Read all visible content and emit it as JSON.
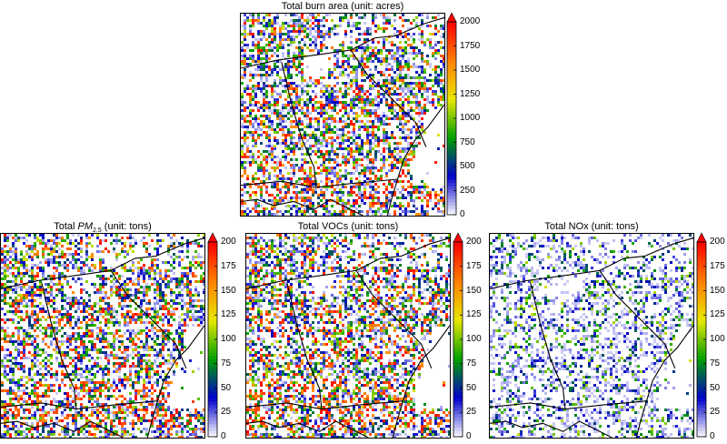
{
  "colors": {
    "scale": [
      "#ffffff",
      "#0000cc",
      "#00a000",
      "#e8e800",
      "#ff8000",
      "#ff0000"
    ],
    "boundary": "#000000"
  },
  "chart_data": [
    {
      "type": "heatmap",
      "title": "Total burn area (unit: acres)",
      "colorbar": {
        "min": 0,
        "max": 2000,
        "ticks": [
          "0",
          "250",
          "500",
          "750",
          "1000",
          "1250",
          "1500",
          "1750",
          "2000"
        ],
        "extend": "max"
      },
      "density": 0.55,
      "hot_share": 0.2
    },
    {
      "type": "heatmap",
      "title_prefix": "Total ",
      "title_var": "PM",
      "title_sub": "2.5",
      "title_suffix": " (unit: tons)",
      "colorbar": {
        "min": 0,
        "max": 200,
        "ticks": [
          "0",
          "25",
          "50",
          "75",
          "100",
          "125",
          "150",
          "175",
          "200"
        ],
        "extend": "max"
      },
      "density": 0.55,
      "hot_share": 0.22
    },
    {
      "type": "heatmap",
      "title": "Total VOCs (unit: tons)",
      "colorbar": {
        "min": 0,
        "max": 200,
        "ticks": [
          "0",
          "25",
          "50",
          "75",
          "100",
          "125",
          "150",
          "175",
          "200"
        ],
        "extend": "max"
      },
      "density": 0.55,
      "hot_share": 0.22
    },
    {
      "type": "heatmap",
      "title": "Total NOx (unit: tons)",
      "colorbar": {
        "min": 0,
        "max": 200,
        "ticks": [
          "0",
          "25",
          "50",
          "75",
          "100",
          "125",
          "150",
          "175",
          "200"
        ],
        "extend": "max"
      },
      "density": 0.4,
      "hot_share": 0.0
    }
  ]
}
